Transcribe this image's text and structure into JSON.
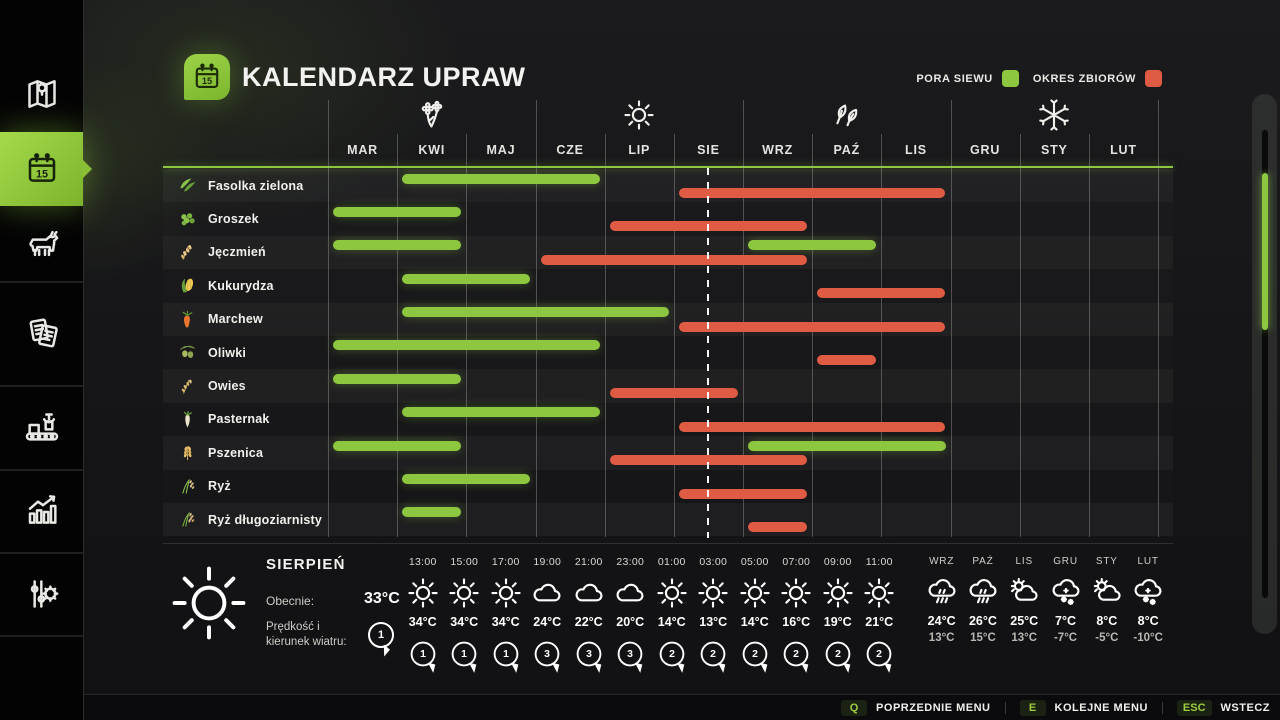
{
  "window": {
    "title": "KALENDARZ UPRAW"
  },
  "colors": {
    "accent_green": "#8dc63f",
    "harvest_red": "#e05b43",
    "sidebar_active": "#8ccd37"
  },
  "sidebar": {
    "items": [
      {
        "icon": "map-icon",
        "active": false
      },
      {
        "icon": "calendar-icon",
        "active": true
      },
      {
        "icon": "animals-icon",
        "active": false
      },
      {
        "icon": "contracts-icon",
        "active": false
      },
      {
        "icon": "production-icon",
        "active": false
      },
      {
        "icon": "statistics-icon",
        "active": false
      },
      {
        "icon": "settings-icon",
        "active": false
      }
    ]
  },
  "legend": {
    "sowing_label": "PORA SIEWU",
    "sowing_color": "#8dc63f",
    "harvest_label": "OKRES ZBIORÓW",
    "harvest_color": "#e05b43"
  },
  "chart_data": {
    "type": "gantt-crop-calendar",
    "months": [
      "MAR",
      "KWI",
      "MAJ",
      "CZE",
      "LIP",
      "SIE",
      "WRZ",
      "PAŹ",
      "LIS",
      "GRU",
      "STY",
      "LUT"
    ],
    "seasons": [
      {
        "icon": "flower-icon",
        "month_index": 1
      },
      {
        "icon": "sun-icon",
        "month_index": 4
      },
      {
        "icon": "leaves-icon",
        "month_index": 7
      },
      {
        "icon": "snowflake-icon",
        "month_index": 10
      }
    ],
    "today_month_position": 5.5,
    "crops": [
      {
        "name": "Fasolka zielona",
        "icon": "green-beans-icon",
        "sowing": [
          {
            "start": 1,
            "months": 3
          }
        ],
        "harvest": [
          {
            "start": 5,
            "months": 4
          }
        ]
      },
      {
        "name": "Groszek",
        "icon": "peas-icon",
        "sowing": [
          {
            "start": 0,
            "months": 2
          }
        ],
        "harvest": [
          {
            "start": 4,
            "months": 3
          }
        ]
      },
      {
        "name": "Jęczmień",
        "icon": "barley-icon",
        "sowing": [
          {
            "start": 0,
            "months": 2
          },
          {
            "start": 6,
            "months": 2
          }
        ],
        "harvest": [
          {
            "start": 3,
            "months": 4
          }
        ]
      },
      {
        "name": "Kukurydza",
        "icon": "corn-icon",
        "sowing": [
          {
            "start": 1,
            "months": 2
          }
        ],
        "harvest": [
          {
            "start": 7,
            "months": 2
          }
        ]
      },
      {
        "name": "Marchew",
        "icon": "carrot-icon",
        "sowing": [
          {
            "start": 1,
            "months": 4
          }
        ],
        "harvest": [
          {
            "start": 5,
            "months": 4
          }
        ]
      },
      {
        "name": "Oliwki",
        "icon": "olives-icon",
        "sowing": [
          {
            "start": 0,
            "months": 4
          }
        ],
        "harvest": [
          {
            "start": 7,
            "months": 1
          }
        ]
      },
      {
        "name": "Owies",
        "icon": "oats-icon",
        "sowing": [
          {
            "start": 0,
            "months": 2
          }
        ],
        "harvest": [
          {
            "start": 4,
            "months": 2
          }
        ]
      },
      {
        "name": "Pasternak",
        "icon": "parsnip-icon",
        "sowing": [
          {
            "start": 1,
            "months": 3
          }
        ],
        "harvest": [
          {
            "start": 5,
            "months": 4
          }
        ]
      },
      {
        "name": "Pszenica",
        "icon": "wheat-icon",
        "sowing": [
          {
            "start": 0,
            "months": 2
          },
          {
            "start": 6,
            "months": 3
          }
        ],
        "harvest": [
          {
            "start": 4,
            "months": 3
          }
        ]
      },
      {
        "name": "Ryż",
        "icon": "rice-icon",
        "sowing": [
          {
            "start": 1,
            "months": 2
          }
        ],
        "harvest": [
          {
            "start": 5,
            "months": 2
          }
        ]
      },
      {
        "name": "Ryż długoziarnisty",
        "icon": "long-rice-icon",
        "sowing": [
          {
            "start": 1,
            "months": 1
          }
        ],
        "harvest": [
          {
            "start": 6,
            "months": 1
          }
        ]
      }
    ]
  },
  "weather": {
    "current": {
      "month": "SIERPIEŃ",
      "icon": "sun-icon",
      "now_label": "Obecnie:",
      "now_temp": "33°C",
      "wind_label_line1": "Prędkość i",
      "wind_label_line2": "kierunek wiatru:",
      "wind_value": "1"
    },
    "hourly": [
      {
        "time": "13:00",
        "icon": "sun-icon",
        "temp": "34°C",
        "wind": "1"
      },
      {
        "time": "15:00",
        "icon": "sun-icon",
        "temp": "34°C",
        "wind": "1"
      },
      {
        "time": "17:00",
        "icon": "sun-icon",
        "temp": "34°C",
        "wind": "1"
      },
      {
        "time": "19:00",
        "icon": "cloud-icon",
        "temp": "24°C",
        "wind": "3"
      },
      {
        "time": "21:00",
        "icon": "cloud-icon",
        "temp": "22°C",
        "wind": "3"
      },
      {
        "time": "23:00",
        "icon": "cloud-icon",
        "temp": "20°C",
        "wind": "3"
      },
      {
        "time": "01:00",
        "icon": "sun-icon",
        "temp": "14°C",
        "wind": "2"
      },
      {
        "time": "03:00",
        "icon": "sun-icon",
        "temp": "13°C",
        "wind": "2"
      },
      {
        "time": "05:00",
        "icon": "sun-icon",
        "temp": "14°C",
        "wind": "2"
      },
      {
        "time": "07:00",
        "icon": "sun-icon",
        "temp": "16°C",
        "wind": "2"
      },
      {
        "time": "09:00",
        "icon": "sun-icon",
        "temp": "19°C",
        "wind": "2"
      },
      {
        "time": "11:00",
        "icon": "sun-icon",
        "temp": "21°C",
        "wind": "2"
      }
    ],
    "monthly": [
      {
        "month": "WRZ",
        "icon": "rain-icon",
        "day": "24°C",
        "night": "13°C"
      },
      {
        "month": "PAŹ",
        "icon": "rain-icon",
        "day": "26°C",
        "night": "15°C"
      },
      {
        "month": "LIS",
        "icon": "sun-cloud-icon",
        "day": "25°C",
        "night": "13°C"
      },
      {
        "month": "GRU",
        "icon": "snow-icon",
        "day": "7°C",
        "night": "-7°C"
      },
      {
        "month": "STY",
        "icon": "sun-cloud-icon",
        "day": "8°C",
        "night": "-5°C"
      },
      {
        "month": "LUT",
        "icon": "snow-icon",
        "day": "8°C",
        "night": "-10°C"
      }
    ]
  },
  "footer": {
    "items": [
      {
        "key": "Q",
        "label": "POPRZEDNIE MENU"
      },
      {
        "key": "E",
        "label": "KOLEJNE MENU"
      },
      {
        "key": "ESC",
        "label": "WSTECZ"
      }
    ]
  }
}
